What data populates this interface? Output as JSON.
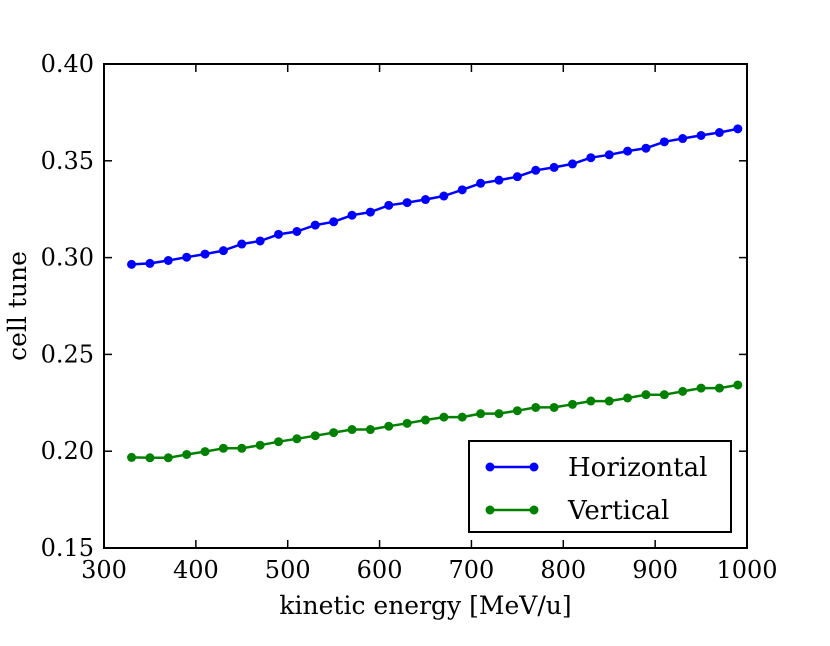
{
  "chart_data": {
    "type": "line",
    "title": "",
    "xlabel": "kinetic energy [MeV/u]",
    "ylabel": "cell tune",
    "xlim": [
      300,
      1000
    ],
    "ylim": [
      0.15,
      0.4
    ],
    "x_ticks": [
      "300",
      "400",
      "500",
      "600",
      "700",
      "800",
      "900",
      "1000"
    ],
    "y_ticks": [
      "0.15",
      "0.20",
      "0.25",
      "0.30",
      "0.35",
      "0.40"
    ],
    "grid": false,
    "legend_position": "lower-right",
    "x": [
      330,
      350,
      370,
      390,
      410,
      430,
      450,
      470,
      490,
      510,
      530,
      550,
      570,
      590,
      610,
      630,
      650,
      670,
      690,
      710,
      730,
      750,
      770,
      790,
      810,
      830,
      850,
      870,
      890,
      910,
      930,
      950,
      970,
      990
    ],
    "series": [
      {
        "name": "Horizontal",
        "color": "#0000ff",
        "values": [
          0.2965,
          0.297,
          0.2985,
          0.3002,
          0.3018,
          0.3036,
          0.307,
          0.3086,
          0.312,
          0.3135,
          0.3168,
          0.3185,
          0.3219,
          0.3235,
          0.327,
          0.3284,
          0.33,
          0.3318,
          0.335,
          0.3384,
          0.34,
          0.3418,
          0.3451,
          0.3466,
          0.3484,
          0.3516,
          0.3531,
          0.355,
          0.3565,
          0.3598,
          0.3615,
          0.3631,
          0.3646,
          0.3665
        ]
      },
      {
        "name": "Vertical",
        "color": "#008000",
        "values": [
          0.1968,
          0.1966,
          0.1966,
          0.1983,
          0.1998,
          0.2015,
          0.2015,
          0.2031,
          0.2049,
          0.2064,
          0.208,
          0.2096,
          0.2112,
          0.2112,
          0.2129,
          0.2144,
          0.2161,
          0.2176,
          0.2176,
          0.2194,
          0.2194,
          0.2209,
          0.2226,
          0.2226,
          0.2242,
          0.2259,
          0.2259,
          0.2275,
          0.2292,
          0.2292,
          0.2309,
          0.2326,
          0.2326,
          0.2342
        ]
      }
    ]
  }
}
